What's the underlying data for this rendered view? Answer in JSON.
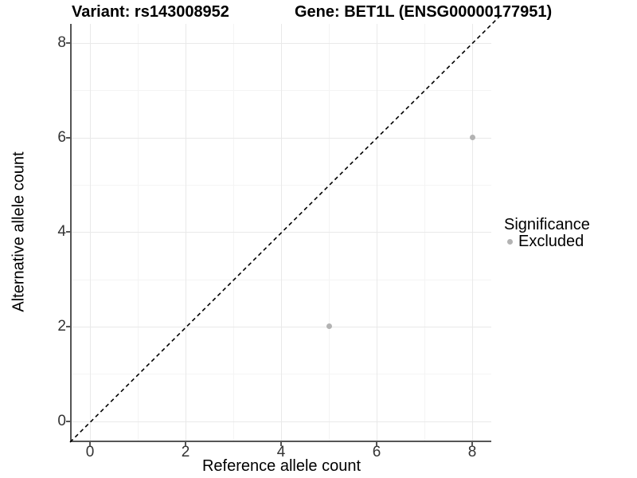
{
  "chart_data": {
    "type": "scatter",
    "title_left": "Variant: rs143008952",
    "title_right": "Gene: BET1L (ENSG00000177951)",
    "xlabel": "Reference allele count",
    "ylabel": "Alternative allele count",
    "xlim": [
      -0.4,
      8.4
    ],
    "ylim": [
      -0.4,
      8.4
    ],
    "x_ticks": [
      0,
      2,
      4,
      6,
      8
    ],
    "y_ticks": [
      0,
      2,
      4,
      6,
      8
    ],
    "x_minor": [
      1,
      3,
      5,
      7
    ],
    "y_minor": [
      1,
      3,
      5,
      7
    ],
    "grid": "major+minor",
    "reference_line": {
      "equation": "y = x",
      "style": "dashed",
      "color": "#000000"
    },
    "series": [
      {
        "name": "Excluded",
        "color": "#b3b3b3",
        "points": [
          [
            5,
            2
          ],
          [
            8,
            6
          ]
        ]
      }
    ],
    "legend": {
      "title": "Significance",
      "position": "right",
      "items": [
        {
          "label": "Excluded",
          "color": "#b3b3b3"
        }
      ]
    }
  },
  "colors": {
    "background": "#ffffff",
    "axis_line": "#555555",
    "tick_label": "#333333",
    "grid_major": "#e9e9e9",
    "grid_minor": "#f4f4f4",
    "point": "#b3b3b3"
  }
}
